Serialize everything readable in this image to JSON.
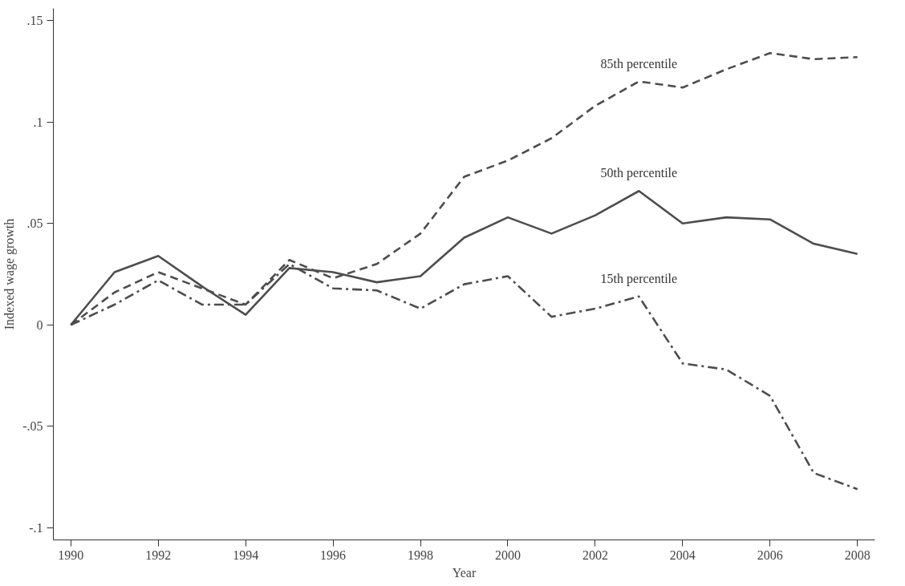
{
  "chart_data": {
    "type": "line",
    "xlabel": "Year",
    "ylabel": "Indexed wage growth",
    "x": [
      1990,
      1991,
      1992,
      1993,
      1994,
      1995,
      1996,
      1997,
      1998,
      1999,
      2000,
      2001,
      2002,
      2003,
      2004,
      2005,
      2006,
      2007,
      2008
    ],
    "xlim": [
      1989.6,
      2008.4
    ],
    "ylim": [
      -0.106,
      0.156
    ],
    "xticks": [
      1990,
      1992,
      1994,
      1996,
      1998,
      2000,
      2002,
      2004,
      2006,
      2008
    ],
    "yticks": [
      {
        "value": -0.1,
        "label": "-.1"
      },
      {
        "value": -0.05,
        "label": "-.05"
      },
      {
        "value": 0,
        "label": "0"
      },
      {
        "value": 0.05,
        "label": ".05"
      },
      {
        "value": 0.1,
        "label": ".1"
      },
      {
        "value": 0.15,
        "label": ".15"
      }
    ],
    "grid": false,
    "marker": "none",
    "series": [
      {
        "name": "85th percentile",
        "color": "#4d4d4d",
        "line_style": "dashed",
        "values": [
          0,
          0.016,
          0.026,
          0.018,
          0.01,
          0.032,
          0.023,
          0.03,
          0.045,
          0.073,
          0.081,
          0.092,
          0.108,
          0.12,
          0.117,
          0.126,
          0.134,
          0.131,
          0.132
        ]
      },
      {
        "name": "50th percentile",
        "color": "#4d4d4d",
        "line_style": "solid",
        "values": [
          0,
          0.026,
          0.034,
          0.019,
          0.005,
          0.028,
          0.026,
          0.021,
          0.024,
          0.043,
          0.053,
          0.045,
          0.054,
          0.066,
          0.05,
          0.053,
          0.052,
          0.04,
          0.035
        ]
      },
      {
        "name": "15th percentile",
        "color": "#4d4d4d",
        "line_style": "dashdot",
        "values": [
          0,
          0.01,
          0.022,
          0.01,
          0.01,
          0.03,
          0.018,
          0.017,
          0.008,
          0.02,
          0.024,
          0.004,
          0.008,
          0.014,
          -0.019,
          -0.022,
          -0.035,
          -0.073,
          -0.081
        ]
      }
    ]
  }
}
